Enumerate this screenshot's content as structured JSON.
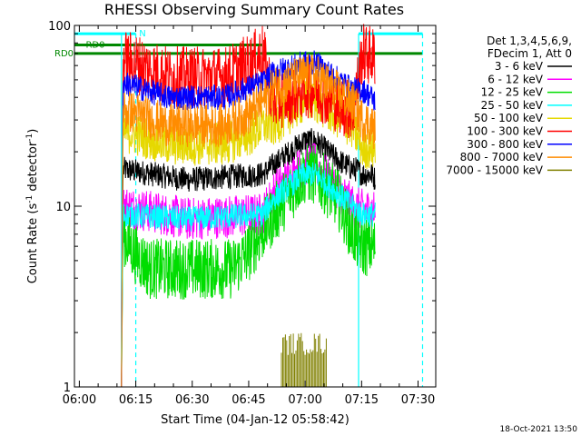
{
  "chart_data": {
    "type": "line",
    "title": "RHESSI Observing Summary Count Rates",
    "xlabel": "Start Time (04-Jan-12 05:58:42)",
    "ylabel_main": "Count Rate (s",
    "ylabel_sup1": "-1",
    "ylabel_mid": " detector",
    "ylabel_sup2": "-1",
    "ylabel_end": ")",
    "y_scale": "log",
    "ylim": [
      1,
      100
    ],
    "xlim_minutes": [
      0,
      96
    ],
    "x_ticks": [
      {
        "t": 1.3,
        "label": "06:00"
      },
      {
        "t": 16.3,
        "label": "06:15"
      },
      {
        "t": 31.3,
        "label": "06:30"
      },
      {
        "t": 46.3,
        "label": "06:45"
      },
      {
        "t": 61.3,
        "label": "07:00"
      },
      {
        "t": 76.3,
        "label": "07:15"
      },
      {
        "t": 91.3,
        "label": "07:30"
      }
    ],
    "y_ticks": [
      {
        "v": 1,
        "label": "1"
      },
      {
        "v": 10,
        "label": "10"
      },
      {
        "v": 100,
        "label": "100"
      }
    ],
    "legend_header": [
      "Det 1,3,4,5,6,9,",
      "FDecim 1, Att 0"
    ],
    "series": [
      {
        "name": "3 - 6 keV",
        "color": "#000000",
        "keypoints": [
          [
            12.5,
            1
          ],
          [
            12.9,
            16
          ],
          [
            30,
            14
          ],
          [
            50,
            15
          ],
          [
            53,
            17
          ],
          [
            61,
            23
          ],
          [
            64,
            23
          ],
          [
            70,
            18
          ],
          [
            74,
            16
          ],
          [
            75,
            16
          ],
          [
            76.5,
            15
          ],
          [
            79,
            15
          ],
          [
            80,
            14
          ]
        ]
      },
      {
        "name": "6 - 12 keV",
        "color": "#ff00ff",
        "keypoints": [
          [
            12.5,
            1
          ],
          [
            12.9,
            10
          ],
          [
            30,
            8.5
          ],
          [
            50,
            9
          ],
          [
            53,
            12
          ],
          [
            61,
            17
          ],
          [
            64,
            17
          ],
          [
            74,
            10
          ],
          [
            76.5,
            9.5
          ],
          [
            80,
            9.5
          ]
        ]
      },
      {
        "name": "12 - 25 keV",
        "color": "#00dd00",
        "keypoints": [
          [
            12.5,
            1
          ],
          [
            12.9,
            7
          ],
          [
            16,
            5.5
          ],
          [
            20,
            4.5
          ],
          [
            42,
            4.5
          ],
          [
            46,
            5.5
          ],
          [
            53,
            9
          ],
          [
            61,
            15
          ],
          [
            64,
            15
          ],
          [
            70,
            11
          ],
          [
            74,
            7
          ],
          [
            76.5,
            6
          ],
          [
            80,
            6
          ]
        ]
      },
      {
        "name": "25 - 50 keV",
        "color": "#00ffff",
        "keypoints": [
          [
            12.5,
            1
          ],
          [
            12.9,
            9
          ],
          [
            30,
            8.5
          ],
          [
            50,
            9
          ],
          [
            53,
            11
          ],
          [
            61,
            15
          ],
          [
            64,
            15
          ],
          [
            74,
            10
          ],
          [
            76.5,
            9
          ],
          [
            80,
            9
          ]
        ]
      },
      {
        "name": "50 - 100 keV",
        "color": "#e6d800",
        "keypoints": [
          [
            12.5,
            1
          ],
          [
            12.9,
            26
          ],
          [
            16,
            25
          ],
          [
            25,
            22
          ],
          [
            40,
            22
          ],
          [
            47,
            25
          ],
          [
            50,
            28
          ],
          [
            53,
            28
          ],
          [
            61,
            38
          ],
          [
            64,
            38
          ],
          [
            74,
            27
          ],
          [
            76.5,
            21
          ],
          [
            79,
            21
          ],
          [
            80,
            20
          ]
        ]
      },
      {
        "name": "100 - 300 keV",
        "color": "#ff0000",
        "keypoints": [
          [
            12.5,
            1
          ],
          [
            12.9,
            65
          ],
          [
            16,
            62
          ],
          [
            25,
            52
          ],
          [
            40,
            52
          ],
          [
            47,
            62
          ],
          [
            50,
            70
          ],
          [
            53,
            38
          ],
          [
            61,
            45
          ],
          [
            64,
            45
          ],
          [
            74,
            33
          ],
          [
            76.5,
            70
          ],
          [
            79,
            68
          ],
          [
            80,
            66
          ]
        ]
      },
      {
        "name": "300 - 800 keV",
        "color": "#0000ff",
        "keypoints": [
          [
            12.5,
            1
          ],
          [
            12.9,
            48
          ],
          [
            16,
            46
          ],
          [
            25,
            40
          ],
          [
            40,
            40
          ],
          [
            47,
            46
          ],
          [
            50,
            48
          ],
          [
            53,
            55
          ],
          [
            61,
            62
          ],
          [
            64,
            62
          ],
          [
            74,
            44
          ],
          [
            76.5,
            44
          ],
          [
            79,
            40
          ],
          [
            80,
            38
          ]
        ]
      },
      {
        "name": "800 - 7000 keV",
        "color": "#ff8c00",
        "keypoints": [
          [
            12.5,
            1
          ],
          [
            12.9,
            34
          ],
          [
            16,
            33
          ],
          [
            25,
            28
          ],
          [
            40,
            28
          ],
          [
            47,
            33
          ],
          [
            50,
            38
          ],
          [
            53,
            45
          ],
          [
            61,
            53
          ],
          [
            64,
            53
          ],
          [
            74,
            37
          ],
          [
            76.5,
            30
          ],
          [
            79,
            28
          ],
          [
            80,
            26
          ]
        ]
      },
      {
        "name": "7000 - 15000 keV",
        "color": "#808000",
        "keypoints": [
          [
            55,
            1
          ],
          [
            55,
            2
          ],
          [
            67,
            2
          ],
          [
            67,
            1
          ]
        ]
      }
    ],
    "flag_bars": [
      {
        "label": "N",
        "color": "#00ffff",
        "segments": [
          [
            0,
            16.3
          ],
          [
            75.5,
            92.5
          ]
        ],
        "y_value": 90,
        "label_t": 17.2
      },
      {
        "label": "RD0",
        "color": "#008800",
        "segments": [
          [
            0,
            50
          ]
        ],
        "y_value": 78,
        "label_t": 3
      },
      {
        "label": "RD0",
        "color": "#008800",
        "segments": [
          [
            0,
            75.5
          ],
          [
            75.5,
            92.5
          ]
        ],
        "y_value": 70,
        "label_t": -5.5,
        "label_left": true
      }
    ],
    "vertical_markers": [
      {
        "t": 12.5,
        "style": "solid",
        "color": "#00ffff"
      },
      {
        "t": 16.3,
        "style": "dashed",
        "color": "#00ffff"
      },
      {
        "t": 75.5,
        "style": "solid",
        "color": "#00ffff"
      },
      {
        "t": 92.5,
        "style": "dashed",
        "color": "#00ffff"
      }
    ],
    "timestamp": "18-Oct-2021 13:50"
  }
}
